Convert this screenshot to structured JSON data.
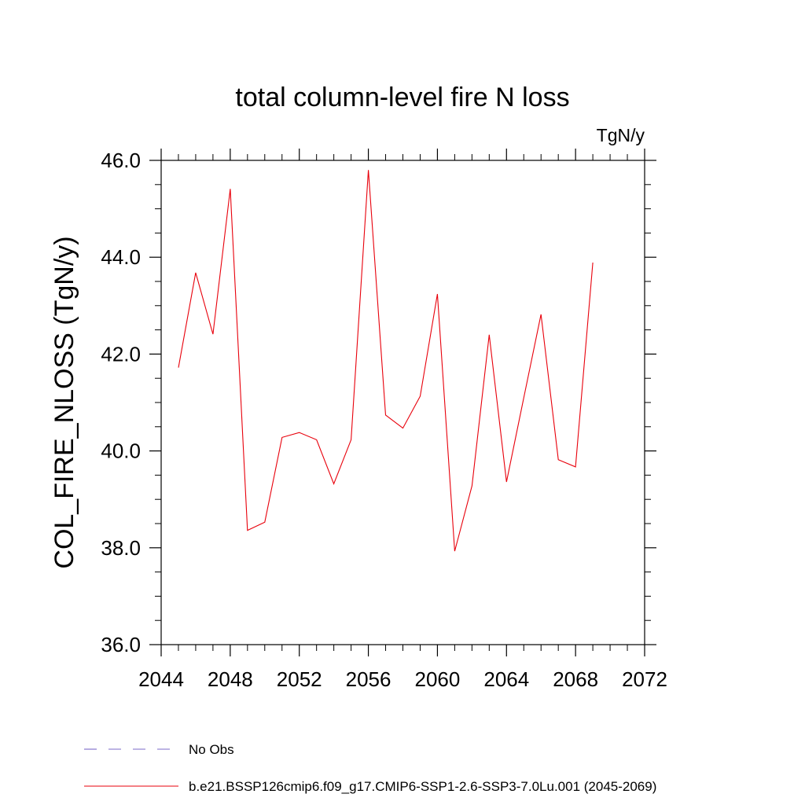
{
  "chart_data": {
    "type": "line",
    "title": "total column-level fire N loss",
    "units_label": "TgN/y",
    "ylabel": "COL_FIRE_NLOSS  (TgN/y)",
    "xlabel": "",
    "xlim": [
      2044,
      2072
    ],
    "ylim": [
      36.0,
      46.0
    ],
    "x_ticks": [
      2044,
      2048,
      2052,
      2056,
      2060,
      2064,
      2068,
      2072
    ],
    "x_tick_labels": [
      "2044",
      "2048",
      "2052",
      "2056",
      "2060",
      "2064",
      "2068",
      "2072"
    ],
    "y_ticks": [
      36.0,
      38.0,
      40.0,
      42.0,
      44.0,
      46.0
    ],
    "y_tick_labels": [
      "36.0",
      "38.0",
      "40.0",
      "42.0",
      "44.0",
      "46.0"
    ],
    "grid": false,
    "legend_position": "bottom-left",
    "legend": [
      {
        "label": "No Obs",
        "color": "#7b68c8",
        "style": "dashed"
      },
      {
        "label": "b.e21.BSSP126cmip6.f09_g17.CMIP6-SSP1-2.6-SSP3-7.0Lu.001 (2045-2069)",
        "color": "#e8000b",
        "style": "solid"
      }
    ],
    "series": [
      {
        "name": "b.e21.BSSP126cmip6.f09_g17.CMIP6-SSP1-2.6-SSP3-7.0Lu.001 (2045-2069)",
        "color": "#e8000b",
        "x": [
          2045,
          2046,
          2047,
          2048,
          2049,
          2050,
          2051,
          2052,
          2053,
          2054,
          2055,
          2056,
          2057,
          2058,
          2059,
          2060,
          2061,
          2062,
          2063,
          2064,
          2065,
          2066,
          2067,
          2068,
          2069
        ],
        "y": [
          41.72,
          43.68,
          42.41,
          45.41,
          38.36,
          38.53,
          40.28,
          40.38,
          40.23,
          39.32,
          40.23,
          45.8,
          40.74,
          40.47,
          41.13,
          43.24,
          37.93,
          39.28,
          42.4,
          39.36,
          41.1,
          42.82,
          39.82,
          39.67,
          43.89
        ]
      }
    ]
  }
}
